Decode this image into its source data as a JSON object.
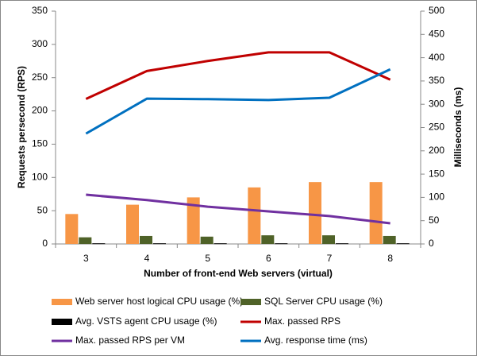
{
  "chart_data": {
    "type": "bar",
    "x_label": "Number of front-end Web servers (virtual)",
    "y_label": "Requests persecond (RPS)",
    "y2_label": "Milliseconds (ms)",
    "categories": [
      "3",
      "4",
      "5",
      "6",
      "7",
      "8"
    ],
    "ylim": [
      0,
      350
    ],
    "yticks": [
      0,
      50,
      100,
      150,
      200,
      250,
      300,
      350
    ],
    "y2lim": [
      0,
      500
    ],
    "y2ticks": [
      0,
      50,
      100,
      150,
      200,
      250,
      300,
      350,
      400,
      450,
      500
    ],
    "grid": false,
    "legend": "bottom",
    "series": [
      {
        "name": "Web server host logical CPU usage (%)",
        "type": "bar",
        "color": "#f79646",
        "values": [
          45,
          59,
          70,
          85,
          93,
          93
        ]
      },
      {
        "name": "SQL Server CPU usage (%)",
        "type": "bar",
        "color": "#4f6228",
        "values": [
          10,
          12,
          11,
          13,
          13,
          12
        ]
      },
      {
        "name": "Avg. VSTS agent CPU usage (%)",
        "type": "bar",
        "color": "#000000",
        "values": [
          1,
          1,
          1,
          1,
          1,
          1
        ]
      },
      {
        "name": "Max. passed RPS",
        "type": "line",
        "color": "#c00000",
        "values": [
          218,
          260,
          275,
          288,
          288,
          247
        ]
      },
      {
        "name": "Max. passed RPS per VM",
        "type": "line",
        "color": "#7030a0",
        "values": [
          74,
          66,
          56,
          49,
          42,
          31
        ]
      },
      {
        "name": "Avg. response time (ms)",
        "type": "line",
        "axis": "y2",
        "color": "#0070c0",
        "values": [
          237,
          312,
          311,
          309,
          314,
          375
        ]
      }
    ]
  }
}
